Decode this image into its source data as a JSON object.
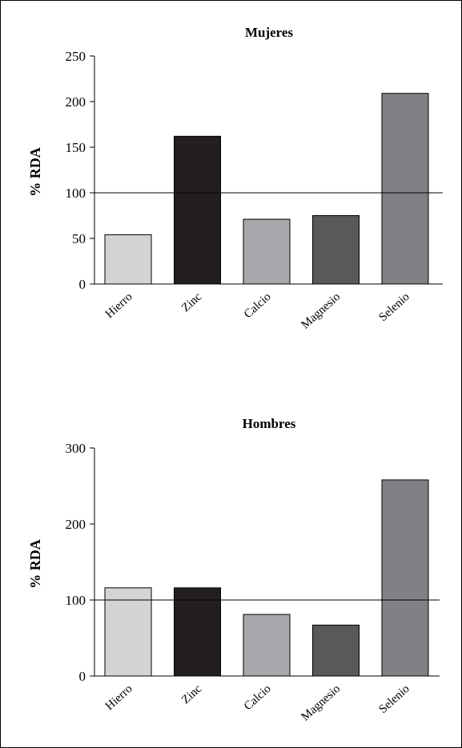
{
  "chart_data": [
    {
      "type": "bar",
      "title": "Mujeres",
      "ylabel": "% RDA",
      "xlabel": "",
      "categories": [
        "Hierro",
        "Zinc",
        "Calcio",
        "Magnesio",
        "Selenio"
      ],
      "values": [
        54,
        162,
        71,
        75,
        209
      ],
      "bar_colors": [
        "#d3d4d6",
        "#231f20",
        "#a7a8ab",
        "#58595b",
        "#808184"
      ],
      "ylim": [
        0,
        250
      ],
      "yticks": [
        0,
        50,
        100,
        150,
        200,
        250
      ],
      "reference_line": 100,
      "grid": false,
      "legend": "none"
    },
    {
      "type": "bar",
      "title": "Hombres",
      "ylabel": "% RDA",
      "xlabel": "",
      "categories": [
        "Hierro",
        "Zinc",
        "Calcio",
        "Magnesio",
        "Selenio"
      ],
      "values": [
        116,
        116,
        81,
        67,
        258
      ],
      "bar_colors": [
        "#d3d4d6",
        "#231f20",
        "#a7a8ab",
        "#58595b",
        "#808184"
      ],
      "ylim": [
        0,
        300
      ],
      "yticks": [
        0,
        100,
        200,
        300
      ],
      "reference_line": 100,
      "grid": false,
      "legend": "none"
    }
  ]
}
